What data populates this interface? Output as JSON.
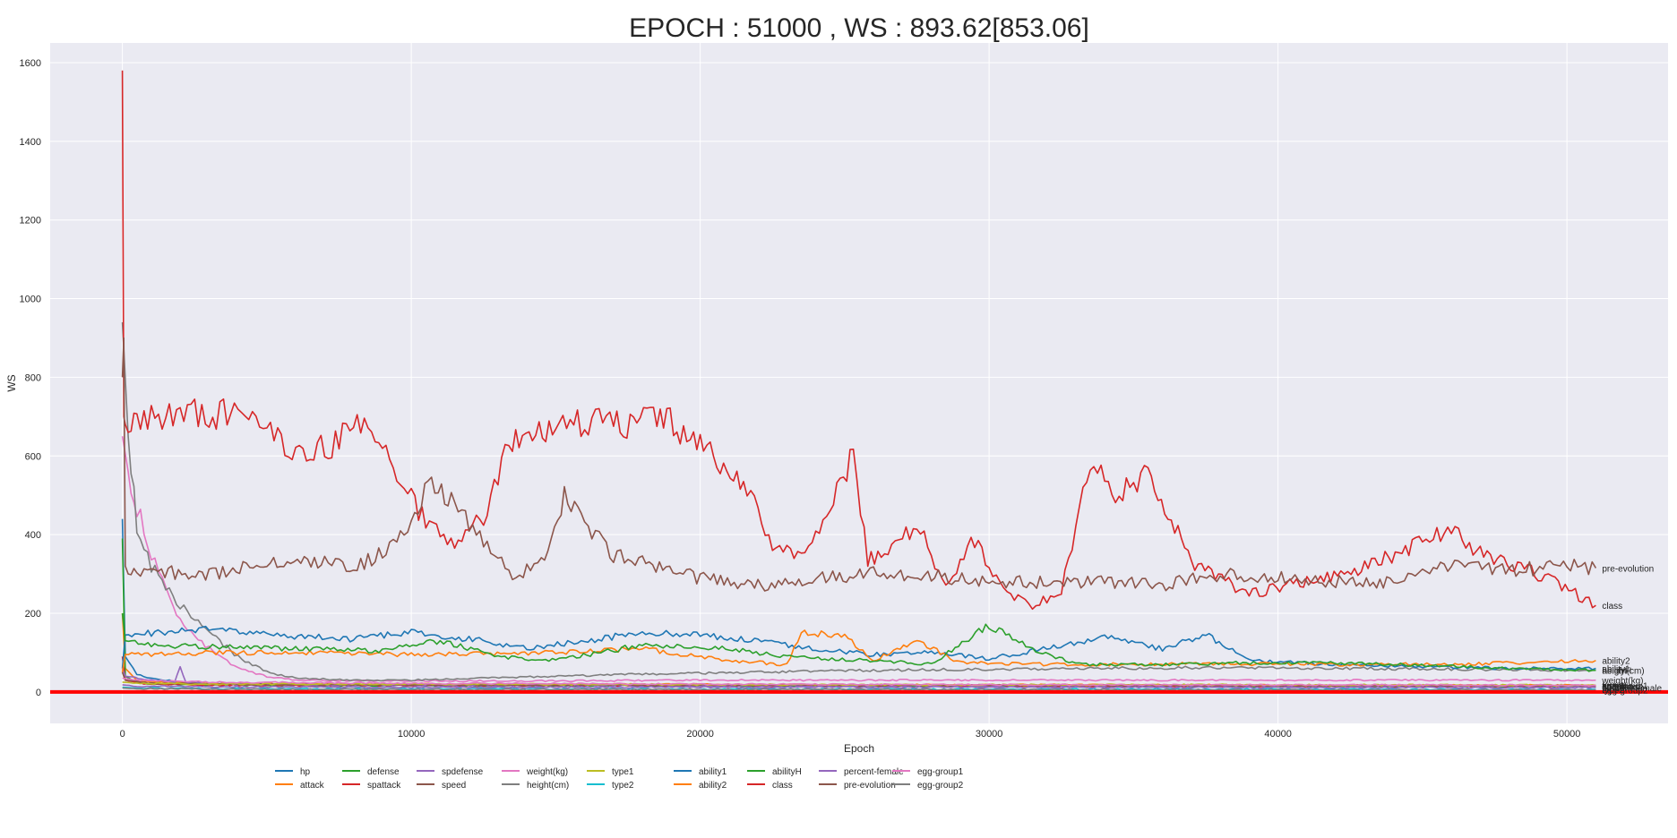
{
  "chart_data": {
    "type": "line",
    "title": "EPOCH : 51000 , WS : 893.62[853.06]",
    "xlabel": "Epoch",
    "ylabel": "WS",
    "xlim": [
      -2500,
      53500
    ],
    "ylim": [
      -80,
      1650
    ],
    "xticks": [
      0,
      10000,
      20000,
      30000,
      40000,
      50000
    ],
    "yticks": [
      0,
      200,
      400,
      600,
      800,
      1000,
      1200,
      1400,
      1600
    ],
    "grid": true,
    "legend_position": "bottom",
    "reference_line": {
      "y": 0,
      "color": "#ff0000"
    },
    "series": [
      {
        "name": "hp",
        "color": "#1f77b4",
        "label_end": "hp",
        "x": [
          0,
          100,
          500,
          1000,
          2000,
          3000,
          5000,
          8000,
          10000,
          14000,
          18000,
          22000,
          26000,
          30000,
          34000,
          38000,
          42000,
          46000,
          51000
        ],
        "y": [
          440,
          90,
          45,
          35,
          25,
          22,
          20,
          18,
          18,
          17,
          17,
          16,
          16,
          16,
          15,
          15,
          15,
          15,
          14
        ]
      },
      {
        "name": "attack",
        "color": "#ff7f0e",
        "label_end": "attack",
        "x": [
          0,
          100,
          500,
          1000,
          3000,
          6000,
          10000,
          15000,
          20000,
          25000,
          30000,
          35000,
          40000,
          45000,
          51000
        ],
        "y": [
          200,
          60,
          30,
          25,
          22,
          20,
          20,
          19,
          19,
          18,
          18,
          18,
          17,
          17,
          17
        ]
      },
      {
        "name": "defense",
        "color": "#2ca02c",
        "label_end": "defense",
        "x": [
          0,
          100,
          500,
          1000,
          3000,
          6000,
          10000,
          15000,
          20000,
          25000,
          30000,
          35000,
          40000,
          45000,
          51000
        ],
        "y": [
          390,
          40,
          25,
          20,
          18,
          17,
          16,
          16,
          15,
          15,
          15,
          15,
          14,
          14,
          14
        ]
      },
      {
        "name": "spattack",
        "color": "#d62728",
        "label_end": "spattack",
        "x": [
          0,
          100,
          500,
          1000,
          3000,
          6000,
          10000,
          15000,
          20000,
          25000,
          30000,
          35000,
          40000,
          45000,
          51000
        ],
        "y": [
          90,
          30,
          22,
          20,
          18,
          17,
          17,
          16,
          16,
          16,
          15,
          15,
          15,
          15,
          15
        ]
      },
      {
        "name": "spdefense",
        "color": "#9467bd",
        "label_end": "spdefense",
        "x": [
          0,
          100,
          1000,
          1800,
          2000,
          2200,
          3000,
          6000,
          10000,
          20000,
          30000,
          40000,
          51000
        ],
        "y": [
          60,
          40,
          30,
          25,
          65,
          25,
          20,
          18,
          17,
          16,
          16,
          15,
          15
        ]
      },
      {
        "name": "speed",
        "color": "#8c564b",
        "label_end": "speed",
        "x": [
          0,
          100,
          1000,
          3000,
          6000,
          10000,
          20000,
          30000,
          40000,
          51000
        ],
        "y": [
          50,
          30,
          22,
          20,
          18,
          18,
          17,
          17,
          16,
          16
        ]
      },
      {
        "name": "weight(kg)",
        "color": "#e377c2",
        "label_end": "weight(kg)",
        "x": [
          0,
          200,
          500,
          1000,
          1500,
          2000,
          3000,
          4000,
          5000,
          6000,
          8000,
          10000,
          15000,
          20000,
          25000,
          30000,
          35000,
          40000,
          45000,
          51000
        ],
        "y": [
          650,
          560,
          470,
          350,
          260,
          180,
          110,
          60,
          40,
          30,
          28,
          28,
          28,
          30,
          30,
          30,
          30,
          30,
          30,
          30
        ]
      },
      {
        "name": "height(cm)",
        "color": "#7f7f7f",
        "label_end": "height(cm)",
        "x": [
          0,
          200,
          500,
          1000,
          2000,
          3000,
          4000,
          5000,
          6000,
          8000,
          10000,
          14000,
          18000,
          22000,
          26000,
          30000,
          34000,
          38000,
          42000,
          46000,
          51000
        ],
        "y": [
          940,
          650,
          420,
          320,
          220,
          150,
          90,
          50,
          35,
          30,
          30,
          38,
          45,
          50,
          55,
          58,
          60,
          62,
          60,
          58,
          55
        ]
      },
      {
        "name": "type1",
        "color": "#bcbd22",
        "label_end": "type1",
        "x": [
          0,
          500,
          3000,
          10000,
          20000,
          30000,
          40000,
          51000
        ],
        "y": [
          25,
          22,
          20,
          20,
          19,
          18,
          18,
          17
        ]
      },
      {
        "name": "type2",
        "color": "#17becf",
        "label_end": "type2",
        "x": [
          0,
          500,
          3000,
          10000,
          20000,
          30000,
          40000,
          51000
        ],
        "y": [
          12,
          10,
          8,
          8,
          7,
          7,
          7,
          6
        ]
      },
      {
        "name": "ability1",
        "color": "#1f77b4",
        "label_end": "ability1",
        "x": [
          0,
          100,
          1000,
          3000,
          5000,
          8000,
          10000,
          12000,
          14000,
          16000,
          18000,
          20000,
          22000,
          24000,
          26000,
          28000,
          30000,
          32000,
          34000,
          36000,
          37500,
          39000,
          42000,
          45000,
          48000,
          51000
        ],
        "y": [
          60,
          145,
          150,
          160,
          145,
          135,
          150,
          135,
          110,
          130,
          150,
          145,
          130,
          110,
          95,
          100,
          85,
          110,
          140,
          110,
          145,
          80,
          70,
          65,
          60,
          60
        ]
      },
      {
        "name": "ability2",
        "color": "#ff7f0e",
        "label_end": "ability2",
        "x": [
          0,
          100,
          1000,
          3000,
          6000,
          10000,
          15000,
          18000,
          21000,
          23000,
          23500,
          25000,
          26000,
          27500,
          29000,
          32000,
          35000,
          38000,
          42000,
          46000,
          51000
        ],
        "y": [
          50,
          95,
          95,
          100,
          100,
          95,
          100,
          110,
          80,
          70,
          150,
          145,
          80,
          130,
          75,
          70,
          70,
          72,
          70,
          70,
          80
        ]
      },
      {
        "name": "abilityH",
        "color": "#2ca02c",
        "label_end": "abilityH",
        "x": [
          0,
          100,
          1000,
          3000,
          6000,
          9000,
          11000,
          13000,
          15000,
          18000,
          21000,
          23000,
          26000,
          28000,
          30000,
          31500,
          33000,
          36000,
          40000,
          44000,
          48000,
          51000
        ],
        "y": [
          200,
          130,
          120,
          115,
          110,
          105,
          130,
          90,
          80,
          120,
          110,
          90,
          80,
          70,
          170,
          110,
          70,
          70,
          75,
          70,
          60,
          55
        ]
      },
      {
        "name": "class",
        "color": "#d62728",
        "label_end": "class",
        "x": [
          0,
          50,
          100,
          200,
          500,
          1000,
          2000,
          3000,
          4000,
          5000,
          6000,
          7000,
          8000,
          9000,
          9500,
          10500,
          11500,
          12500,
          13500,
          15000,
          16000,
          17000,
          18500,
          20000,
          21500,
          22500,
          23500,
          24500,
          25300,
          25800,
          26500,
          27500,
          28500,
          29500,
          30500,
          31500,
          32500,
          33500,
          34500,
          35500,
          37000,
          39000,
          41000,
          43000,
          45000,
          46000,
          47000,
          49000,
          51000
        ],
        "y": [
          1580,
          700,
          680,
          660,
          690,
          700,
          710,
          710,
          700,
          680,
          590,
          620,
          670,
          640,
          560,
          430,
          380,
          450,
          650,
          670,
          690,
          680,
          700,
          640,
          530,
          380,
          340,
          460,
          610,
          340,
          350,
          430,
          260,
          390,
          260,
          220,
          260,
          580,
          500,
          560,
          330,
          250,
          280,
          320,
          380,
          420,
          350,
          300,
          220
        ]
      },
      {
        "name": "percent-female",
        "color": "#9467bd",
        "label_end": "percent-female",
        "x": [
          0,
          500,
          3000,
          10000,
          20000,
          30000,
          40000,
          51000
        ],
        "y": [
          18,
          15,
          13,
          12,
          12,
          12,
          11,
          11
        ]
      },
      {
        "name": "pre-evolution",
        "color": "#8c564b",
        "label_end": "pre-evolution",
        "x": [
          0,
          50,
          100,
          200,
          500,
          1000,
          3000,
          5000,
          7000,
          8000,
          9000,
          10000,
          10700,
          11500,
          12500,
          13500,
          14500,
          15300,
          16000,
          17000,
          18000,
          20000,
          22000,
          24000,
          26000,
          28000,
          30000,
          32000,
          34000,
          36000,
          38000,
          40000,
          42000,
          44000,
          45000,
          46000,
          48000,
          50000,
          51000
        ],
        "y": [
          800,
          900,
          320,
          300,
          300,
          305,
          300,
          330,
          330,
          320,
          350,
          420,
          540,
          470,
          380,
          290,
          330,
          500,
          420,
          350,
          330,
          290,
          270,
          290,
          300,
          295,
          280,
          280,
          280,
          270,
          300,
          290,
          280,
          280,
          300,
          330,
          310,
          320,
          315
        ]
      },
      {
        "name": "egg-group1",
        "color": "#e377c2",
        "label_end": "egg-group1",
        "x": [
          0,
          500,
          3000,
          10000,
          20000,
          30000,
          40000,
          51000
        ],
        "y": [
          35,
          30,
          25,
          22,
          20,
          18,
          18,
          17
        ]
      },
      {
        "name": "egg-group2",
        "color": "#7f7f7f",
        "label_end": "egg-group2",
        "x": [
          0,
          500,
          3000,
          10000,
          20000,
          30000,
          40000,
          51000
        ],
        "y": [
          10,
          8,
          7,
          6,
          6,
          6,
          5,
          5
        ]
      }
    ]
  }
}
